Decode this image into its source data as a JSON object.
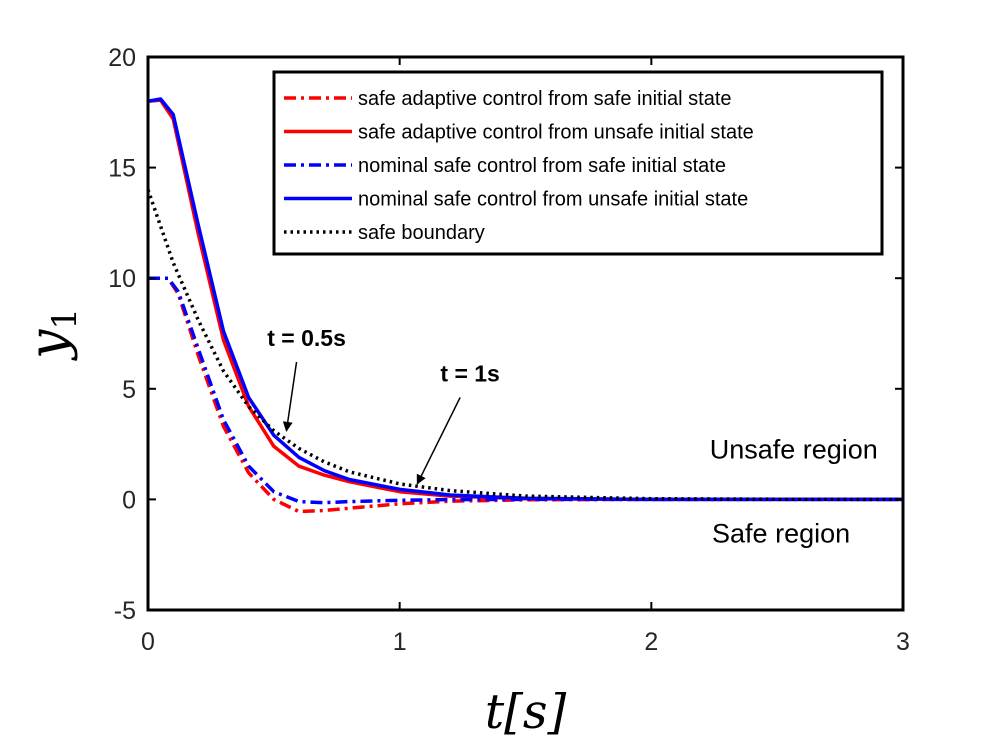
{
  "chart_data": {
    "type": "line",
    "xlabel": "t[s]",
    "ylabel": "y1",
    "xlim": [
      0,
      3
    ],
    "ylim": [
      -5,
      20
    ],
    "xticks": [
      "0",
      "1",
      "2",
      "3"
    ],
    "yticks": [
      "-5",
      "0",
      "5",
      "10",
      "15",
      "20"
    ],
    "grid": false,
    "legend_position": "top-right",
    "series": [
      {
        "name": "safe adaptive control from safe initial state",
        "color": "#ff0000",
        "dash": "dashdot",
        "x": [
          0,
          0.08,
          0.12,
          0.2,
          0.3,
          0.4,
          0.5,
          0.6,
          0.7,
          0.8,
          1.0,
          1.2,
          1.5,
          2.0,
          3.0
        ],
        "y": [
          10,
          10,
          9.3,
          6.5,
          3.3,
          1.2,
          0.0,
          -0.55,
          -0.5,
          -0.4,
          -0.2,
          -0.08,
          -0.02,
          0,
          0
        ]
      },
      {
        "name": "safe adaptive control from unsafe initial state",
        "color": "#ff0000",
        "dash": "solid",
        "x": [
          0,
          0.05,
          0.1,
          0.2,
          0.3,
          0.4,
          0.5,
          0.6,
          0.7,
          0.8,
          1.0,
          1.2,
          1.5,
          2.0,
          3.0
        ],
        "y": [
          18,
          18.05,
          17.2,
          12.0,
          7.2,
          4.2,
          2.4,
          1.5,
          1.1,
          0.8,
          0.35,
          0.15,
          0.03,
          0,
          0
        ]
      },
      {
        "name": "nominal safe control from safe initial state",
        "color": "#0000ff",
        "dash": "dashdot",
        "x": [
          0,
          0.08,
          0.12,
          0.2,
          0.3,
          0.4,
          0.5,
          0.6,
          0.7,
          0.8,
          1.0,
          1.2,
          1.5,
          2.0,
          3.0
        ],
        "y": [
          10,
          10,
          9.4,
          6.8,
          3.6,
          1.5,
          0.35,
          -0.1,
          -0.15,
          -0.1,
          -0.04,
          -0.01,
          0,
          0,
          0
        ]
      },
      {
        "name": "nominal safe control from unsafe initial state",
        "color": "#0000ff",
        "dash": "solid",
        "x": [
          0,
          0.05,
          0.1,
          0.2,
          0.3,
          0.4,
          0.5,
          0.6,
          0.7,
          0.8,
          1.0,
          1.2,
          1.5,
          2.0,
          3.0
        ],
        "y": [
          18,
          18.1,
          17.4,
          12.4,
          7.6,
          4.6,
          2.9,
          1.9,
          1.3,
          0.9,
          0.45,
          0.2,
          0.05,
          0,
          0
        ]
      },
      {
        "name": "safe boundary",
        "color": "#000000",
        "dash": "dotted",
        "x": [
          0,
          0.1,
          0.2,
          0.3,
          0.4,
          0.5,
          0.6,
          0.7,
          0.8,
          1.0,
          1.2,
          1.5,
          2.0,
          2.5,
          3.0
        ],
        "y": [
          14,
          10.7,
          8.1,
          5.8,
          4.2,
          3.1,
          2.3,
          1.7,
          1.25,
          0.7,
          0.4,
          0.15,
          0.03,
          0.01,
          0
        ]
      }
    ],
    "annotations": [
      {
        "text": "t = 0.5s",
        "point_x": 0.55,
        "point_y": 3.1,
        "label_x": 0.63,
        "label_y": 6.3
      },
      {
        "text": "t = 1s",
        "point_x": 1.07,
        "point_y": 0.7,
        "label_x": 1.28,
        "label_y": 4.7
      },
      {
        "text": "Unsafe region",
        "point_x": 2.9,
        "point_y": 2.3
      },
      {
        "text": "Safe region",
        "point_x": 2.79,
        "point_y": -1.5
      }
    ]
  }
}
